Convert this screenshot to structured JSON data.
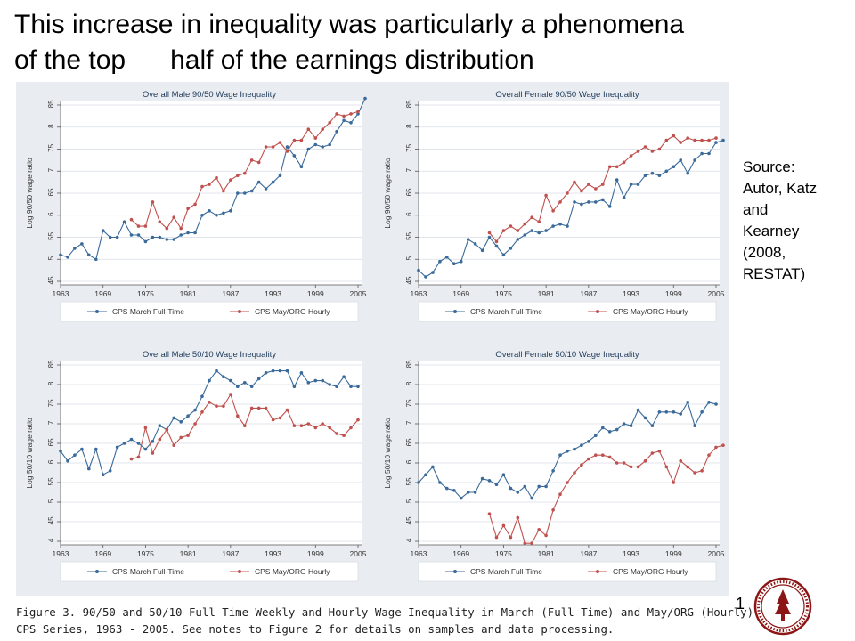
{
  "title": {
    "line1": "This increase in inequality was particularly a phenomena",
    "line2": "of the top      half of the earnings distribution"
  },
  "source": {
    "lines": [
      "Source:",
      "Autor, Katz",
      "and",
      "Kearney",
      "(2008,",
      "RESTAT)"
    ]
  },
  "page_number": "1",
  "caption": {
    "line1": "Figure 3. 90/50 and 50/10 Full-Time Weekly and Hourly Wage Inequality in March (Full-Time) and May/ORG (Hourly)",
    "line2": "CPS Series, 1963 - 2005. See notes to Figure 2 for details on samples and data processing."
  },
  "colors": {
    "march": "#3a6a9a",
    "may": "#c0504d",
    "panel_bg": "#e9edf1",
    "plot_bg": "#ffffff"
  },
  "chart_data": [
    {
      "type": "line",
      "title": "Overall Male 90/50  Wage Inequality",
      "ylabel": "Log 90/50 wage ratio",
      "xlim": [
        1963,
        2005
      ],
      "xticks": [
        1963,
        1969,
        1975,
        1981,
        1987,
        1993,
        1999,
        2005
      ],
      "ylim": [
        0.45,
        0.85
      ],
      "yticks": [
        0.45,
        0.5,
        0.55,
        0.6,
        0.65,
        0.7,
        0.75,
        0.8,
        0.85
      ],
      "ytick_labels": [
        ".45",
        ".5",
        ".55",
        ".6",
        ".65",
        ".7",
        ".75",
        ".8",
        ".85"
      ],
      "legend": "bottom",
      "series": [
        {
          "name": "CPS March Full-Time",
          "x_start": 1963,
          "values": [
            0.51,
            0.505,
            0.525,
            0.535,
            0.51,
            0.5,
            0.565,
            0.55,
            0.55,
            0.585,
            0.555,
            0.555,
            0.54,
            0.55,
            0.55,
            0.545,
            0.545,
            0.555,
            0.56,
            0.56,
            0.6,
            0.61,
            0.6,
            0.605,
            0.61,
            0.65,
            0.65,
            0.655,
            0.675,
            0.66,
            0.675,
            0.69,
            0.755,
            0.735,
            0.71,
            0.75,
            0.76,
            0.755,
            0.76,
            0.79,
            0.815,
            0.81,
            0.83,
            0.865
          ]
        },
        {
          "name": "CPS May/ORG Hourly",
          "x_start": 1973,
          "values": [
            0.59,
            0.575,
            0.575,
            0.63,
            0.585,
            0.57,
            0.595,
            0.57,
            0.615,
            0.625,
            0.665,
            0.67,
            0.685,
            0.655,
            0.68,
            0.69,
            0.695,
            0.725,
            0.72,
            0.755,
            0.755,
            0.765,
            0.745,
            0.77,
            0.77,
            0.795,
            0.775,
            0.795,
            0.81,
            0.83,
            0.825,
            0.83,
            0.835
          ]
        }
      ]
    },
    {
      "type": "line",
      "title": "Overall Female 90/50  Wage Inequality",
      "ylabel": "Log 90/50 wage ratio",
      "xlim": [
        1963,
        2005
      ],
      "xticks": [
        1963,
        1969,
        1975,
        1981,
        1987,
        1993,
        1999,
        2005
      ],
      "ylim": [
        0.45,
        0.85
      ],
      "yticks": [
        0.45,
        0.5,
        0.55,
        0.6,
        0.65,
        0.7,
        0.75,
        0.8,
        0.85
      ],
      "ytick_labels": [
        ".45",
        ".5",
        ".55",
        ".6",
        ".65",
        ".7",
        ".75",
        ".8",
        ".85"
      ],
      "legend": "bottom",
      "series": [
        {
          "name": "CPS March Full-Time",
          "x_start": 1963,
          "values": [
            0.475,
            0.46,
            0.47,
            0.495,
            0.505,
            0.49,
            0.495,
            0.545,
            0.535,
            0.52,
            0.55,
            0.53,
            0.51,
            0.525,
            0.545,
            0.555,
            0.565,
            0.56,
            0.565,
            0.575,
            0.58,
            0.575,
            0.63,
            0.625,
            0.63,
            0.63,
            0.635,
            0.62,
            0.68,
            0.64,
            0.67,
            0.67,
            0.69,
            0.695,
            0.69,
            0.7,
            0.71,
            0.725,
            0.695,
            0.725,
            0.74,
            0.74,
            0.765,
            0.77
          ]
        },
        {
          "name": "CPS May/ORG Hourly",
          "x_start": 1973,
          "values": [
            0.56,
            0.54,
            0.565,
            0.575,
            0.565,
            0.58,
            0.595,
            0.585,
            0.645,
            0.61,
            0.63,
            0.65,
            0.675,
            0.655,
            0.67,
            0.66,
            0.67,
            0.71,
            0.71,
            0.72,
            0.735,
            0.745,
            0.755,
            0.745,
            0.75,
            0.77,
            0.78,
            0.765,
            0.775,
            0.77,
            0.77,
            0.77,
            0.775
          ]
        }
      ]
    },
    {
      "type": "line",
      "title": "Overall Male 50/10  Wage Inequality",
      "ylabel": "Log 50/10 wage ratio",
      "xlim": [
        1963,
        2005
      ],
      "xticks": [
        1963,
        1969,
        1975,
        1981,
        1987,
        1993,
        1999,
        2005
      ],
      "ylim": [
        0.4,
        0.85
      ],
      "yticks": [
        0.4,
        0.45,
        0.5,
        0.55,
        0.6,
        0.65,
        0.7,
        0.75,
        0.8,
        0.85
      ],
      "ytick_labels": [
        ".4",
        ".45",
        ".5",
        ".55",
        ".6",
        ".65",
        ".7",
        ".75",
        ".8",
        ".85"
      ],
      "legend": "bottom",
      "series": [
        {
          "name": "CPS March Full-Time",
          "x_start": 1963,
          "values": [
            0.63,
            0.605,
            0.62,
            0.635,
            0.585,
            0.635,
            0.57,
            0.58,
            0.64,
            0.65,
            0.66,
            0.65,
            0.635,
            0.655,
            0.695,
            0.685,
            0.715,
            0.705,
            0.72,
            0.735,
            0.77,
            0.81,
            0.835,
            0.82,
            0.81,
            0.795,
            0.805,
            0.795,
            0.815,
            0.83,
            0.835,
            0.835,
            0.835,
            0.795,
            0.83,
            0.805,
            0.81,
            0.81,
            0.8,
            0.795,
            0.82,
            0.795,
            0.795
          ]
        },
        {
          "name": "CPS May/ORG Hourly",
          "x_start": 1973,
          "values": [
            0.61,
            0.615,
            0.69,
            0.625,
            0.66,
            0.685,
            0.645,
            0.665,
            0.67,
            0.7,
            0.73,
            0.755,
            0.745,
            0.745,
            0.775,
            0.72,
            0.695,
            0.74,
            0.74,
            0.74,
            0.71,
            0.715,
            0.735,
            0.695,
            0.695,
            0.7,
            0.69,
            0.7,
            0.69,
            0.675,
            0.67,
            0.69,
            0.71
          ]
        }
      ]
    },
    {
      "type": "line",
      "title": "Overall Female 50/10  Wage Inequality",
      "ylabel": "Log 50/10 wage ratio",
      "xlim": [
        1963,
        2005
      ],
      "xticks": [
        1963,
        1969,
        1975,
        1981,
        1987,
        1993,
        1999,
        2005
      ],
      "ylim": [
        0.4,
        0.85
      ],
      "yticks": [
        0.4,
        0.45,
        0.5,
        0.55,
        0.6,
        0.65,
        0.7,
        0.75,
        0.8,
        0.85
      ],
      "ytick_labels": [
        ".4",
        ".45",
        ".5",
        ".55",
        ".6",
        ".65",
        ".7",
        ".75",
        ".8",
        ".85"
      ],
      "legend": "bottom",
      "series": [
        {
          "name": "CPS March Full-Time",
          "x_start": 1963,
          "values": [
            0.55,
            0.57,
            0.59,
            0.55,
            0.535,
            0.53,
            0.51,
            0.525,
            0.525,
            0.56,
            0.555,
            0.545,
            0.57,
            0.535,
            0.525,
            0.54,
            0.51,
            0.54,
            0.54,
            0.58,
            0.62,
            0.63,
            0.635,
            0.645,
            0.655,
            0.67,
            0.69,
            0.68,
            0.685,
            0.7,
            0.695,
            0.735,
            0.715,
            0.695,
            0.73,
            0.73,
            0.73,
            0.725,
            0.755,
            0.695,
            0.73,
            0.755,
            0.75
          ]
        },
        {
          "name": "CPS May/ORG Hourly",
          "x_start": 1973,
          "values": [
            0.47,
            0.41,
            0.44,
            0.41,
            0.46,
            0.395,
            0.395,
            0.43,
            0.415,
            0.48,
            0.52,
            0.55,
            0.575,
            0.595,
            0.61,
            0.62,
            0.62,
            0.615,
            0.6,
            0.6,
            0.59,
            0.59,
            0.605,
            0.625,
            0.63,
            0.59,
            0.55,
            0.605,
            0.59,
            0.575,
            0.58,
            0.62,
            0.64,
            0.645
          ]
        }
      ]
    }
  ]
}
